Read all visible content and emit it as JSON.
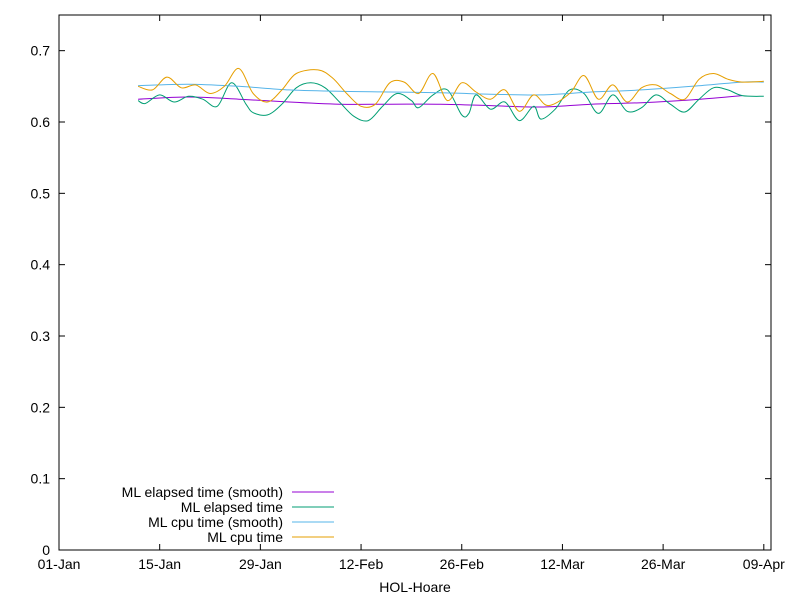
{
  "chart_data": {
    "type": "line",
    "title": "",
    "xlabel": "HOL-Hoare",
    "ylabel": "",
    "xlim": [
      "2024-01-01",
      "2024-04-09"
    ],
    "ylim": [
      0,
      0.75
    ],
    "x_ticks": [
      "01-Jan",
      "15-Jan",
      "29-Jan",
      "12-Feb",
      "26-Feb",
      "12-Mar",
      "26-Mar",
      "09-Apr"
    ],
    "y_ticks": [
      "0",
      "0.1",
      "0.2",
      "0.3",
      "0.4",
      "0.5",
      "0.6",
      "0.7"
    ],
    "grid": false,
    "legend_position": "bottom-left",
    "series": [
      {
        "name": "ML elapsed time (smooth)",
        "color": "#9400d3",
        "points": [
          [
            "2024-01-12",
            0.632
          ],
          [
            "2024-01-19",
            0.635
          ],
          [
            "2024-01-26",
            0.632
          ],
          [
            "2024-02-02",
            0.628
          ],
          [
            "2024-02-09",
            0.625
          ],
          [
            "2024-02-16",
            0.625
          ],
          [
            "2024-02-23",
            0.625
          ],
          [
            "2024-03-01",
            0.623
          ],
          [
            "2024-03-08",
            0.621
          ],
          [
            "2024-03-15",
            0.625
          ],
          [
            "2024-03-22",
            0.627
          ],
          [
            "2024-03-29",
            0.631
          ],
          [
            "2024-04-05",
            0.637
          ]
        ]
      },
      {
        "name": "ML elapsed time",
        "color": "#009e73",
        "points": [
          [
            "2024-01-12",
            0.63
          ],
          [
            "2024-01-13",
            0.626
          ],
          [
            "2024-01-15",
            0.638
          ],
          [
            "2024-01-17",
            0.628
          ],
          [
            "2024-01-19",
            0.636
          ],
          [
            "2024-01-21",
            0.632
          ],
          [
            "2024-01-23",
            0.622
          ],
          [
            "2024-01-25",
            0.655
          ],
          [
            "2024-01-27",
            0.625
          ],
          [
            "2024-01-28",
            0.613
          ],
          [
            "2024-01-30",
            0.61
          ],
          [
            "2024-02-01",
            0.625
          ],
          [
            "2024-02-03",
            0.648
          ],
          [
            "2024-02-05",
            0.655
          ],
          [
            "2024-02-07",
            0.648
          ],
          [
            "2024-02-09",
            0.628
          ],
          [
            "2024-02-11",
            0.608
          ],
          [
            "2024-02-13",
            0.602
          ],
          [
            "2024-02-15",
            0.622
          ],
          [
            "2024-02-17",
            0.64
          ],
          [
            "2024-02-19",
            0.63
          ],
          [
            "2024-02-20",
            0.62
          ],
          [
            "2024-02-22",
            0.638
          ],
          [
            "2024-02-24",
            0.645
          ],
          [
            "2024-02-26",
            0.61
          ],
          [
            "2024-02-27",
            0.612
          ],
          [
            "2024-02-28",
            0.638
          ],
          [
            "2024-03-01",
            0.618
          ],
          [
            "2024-03-03",
            0.628
          ],
          [
            "2024-03-05",
            0.602
          ],
          [
            "2024-03-07",
            0.622
          ],
          [
            "2024-03-08",
            0.604
          ],
          [
            "2024-03-10",
            0.618
          ],
          [
            "2024-03-12",
            0.645
          ],
          [
            "2024-03-14",
            0.64
          ],
          [
            "2024-03-16",
            0.612
          ],
          [
            "2024-03-18",
            0.638
          ],
          [
            "2024-03-20",
            0.615
          ],
          [
            "2024-03-22",
            0.62
          ],
          [
            "2024-03-24",
            0.638
          ],
          [
            "2024-03-26",
            0.625
          ],
          [
            "2024-03-28",
            0.614
          ],
          [
            "2024-03-30",
            0.632
          ],
          [
            "2024-04-01",
            0.648
          ],
          [
            "2024-04-03",
            0.645
          ],
          [
            "2024-04-05",
            0.637
          ],
          [
            "2024-04-08",
            0.636
          ]
        ]
      },
      {
        "name": "ML cpu time (smooth)",
        "color": "#56b4e9",
        "points": [
          [
            "2024-01-12",
            0.651
          ],
          [
            "2024-01-19",
            0.653
          ],
          [
            "2024-01-26",
            0.65
          ],
          [
            "2024-02-02",
            0.645
          ],
          [
            "2024-02-09",
            0.643
          ],
          [
            "2024-02-16",
            0.642
          ],
          [
            "2024-02-23",
            0.641
          ],
          [
            "2024-03-01",
            0.639
          ],
          [
            "2024-03-08",
            0.638
          ],
          [
            "2024-03-15",
            0.642
          ],
          [
            "2024-03-22",
            0.645
          ],
          [
            "2024-03-29",
            0.65
          ],
          [
            "2024-04-05",
            0.656
          ],
          [
            "2024-04-08",
            0.656
          ]
        ]
      },
      {
        "name": "ML cpu time",
        "color": "#e69f00",
        "points": [
          [
            "2024-01-12",
            0.65
          ],
          [
            "2024-01-14",
            0.645
          ],
          [
            "2024-01-16",
            0.663
          ],
          [
            "2024-01-18",
            0.648
          ],
          [
            "2024-01-20",
            0.652
          ],
          [
            "2024-01-22",
            0.64
          ],
          [
            "2024-01-24",
            0.65
          ],
          [
            "2024-01-26",
            0.675
          ],
          [
            "2024-01-28",
            0.64
          ],
          [
            "2024-01-30",
            0.628
          ],
          [
            "2024-02-01",
            0.645
          ],
          [
            "2024-02-03",
            0.668
          ],
          [
            "2024-02-06",
            0.673
          ],
          [
            "2024-02-08",
            0.662
          ],
          [
            "2024-02-10",
            0.64
          ],
          [
            "2024-02-12",
            0.622
          ],
          [
            "2024-02-14",
            0.625
          ],
          [
            "2024-02-16",
            0.655
          ],
          [
            "2024-02-18",
            0.656
          ],
          [
            "2024-02-20",
            0.64
          ],
          [
            "2024-02-22",
            0.668
          ],
          [
            "2024-02-24",
            0.63
          ],
          [
            "2024-02-26",
            0.655
          ],
          [
            "2024-02-28",
            0.642
          ],
          [
            "2024-03-01",
            0.632
          ],
          [
            "2024-03-03",
            0.645
          ],
          [
            "2024-03-05",
            0.615
          ],
          [
            "2024-03-07",
            0.638
          ],
          [
            "2024-03-09",
            0.623
          ],
          [
            "2024-03-12",
            0.64
          ],
          [
            "2024-03-14",
            0.665
          ],
          [
            "2024-03-16",
            0.632
          ],
          [
            "2024-03-18",
            0.652
          ],
          [
            "2024-03-20",
            0.628
          ],
          [
            "2024-03-22",
            0.648
          ],
          [
            "2024-03-24",
            0.652
          ],
          [
            "2024-03-26",
            0.64
          ],
          [
            "2024-03-28",
            0.632
          ],
          [
            "2024-03-30",
            0.66
          ],
          [
            "2024-04-01",
            0.668
          ],
          [
            "2024-04-03",
            0.66
          ],
          [
            "2024-04-05",
            0.656
          ],
          [
            "2024-04-08",
            0.657
          ]
        ]
      }
    ]
  }
}
